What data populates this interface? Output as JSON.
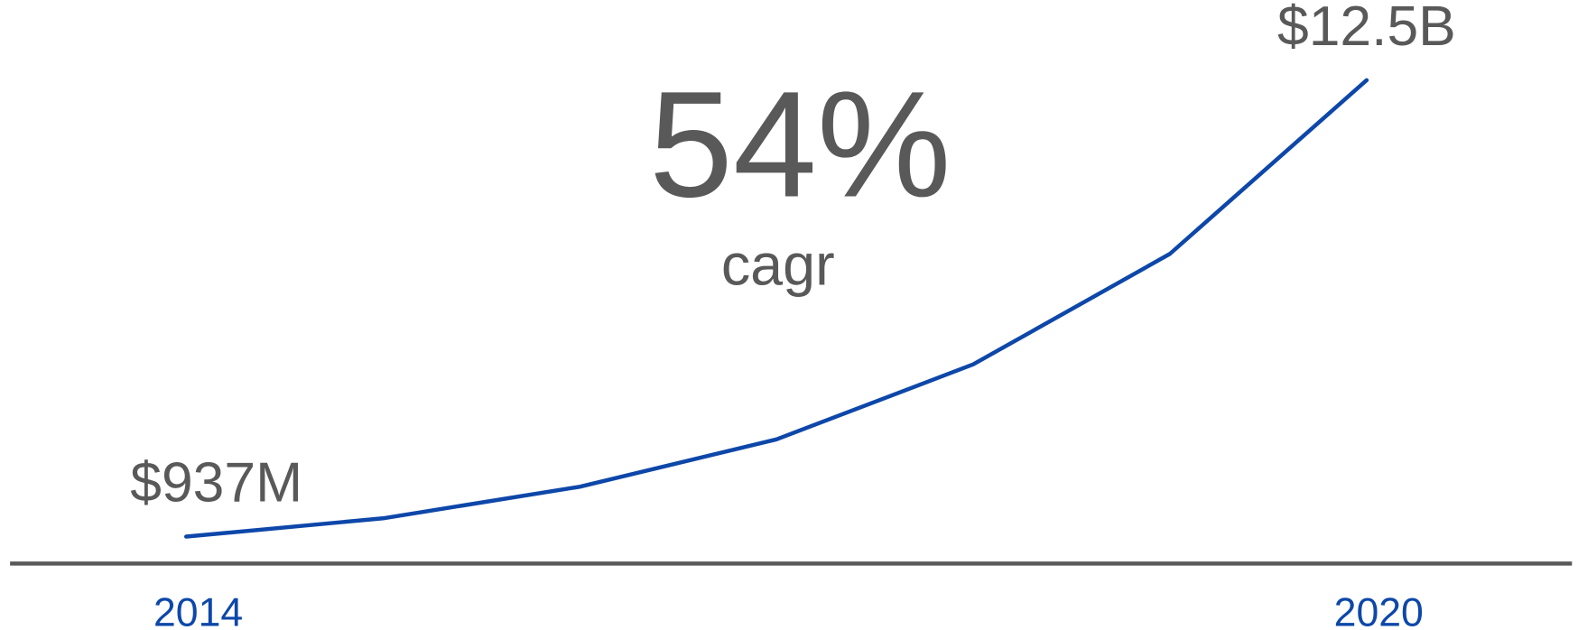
{
  "chart_data": {
    "type": "line",
    "annotation": "54%",
    "annotation_subtitle": "cagr",
    "categories": [
      "2014",
      null,
      null,
      null,
      null,
      null,
      "2020"
    ],
    "values": [
      937000000,
      1400000000,
      2200000000,
      3400000000,
      5300000000,
      8100000000,
      12500000000
    ],
    "value_labels": [
      "$937M",
      null,
      null,
      null,
      null,
      null,
      "$12.5B"
    ],
    "color": "#0d47a9",
    "ylim": [
      0,
      13000000000
    ]
  }
}
